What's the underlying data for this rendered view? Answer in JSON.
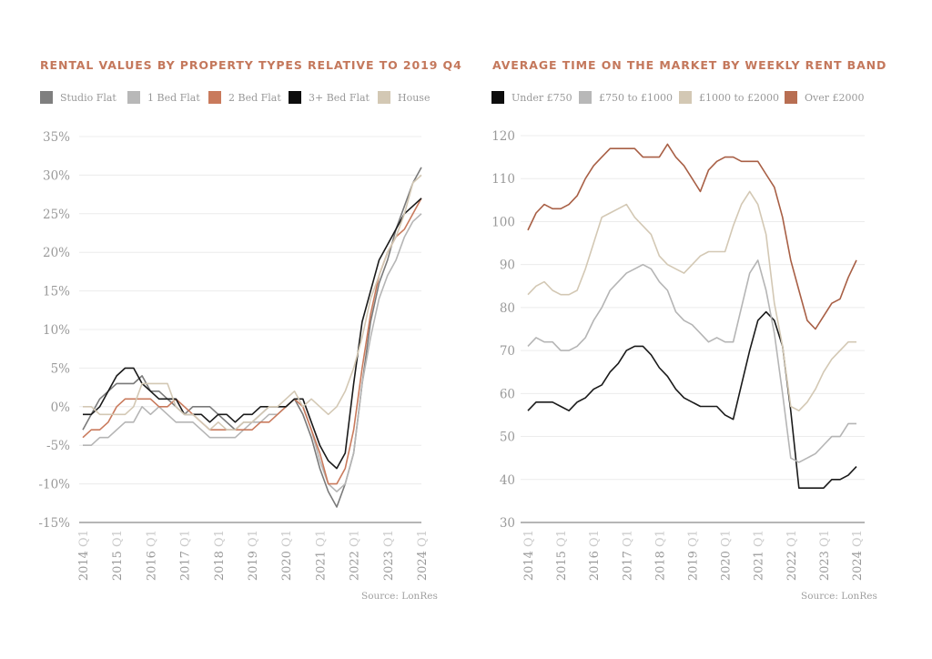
{
  "chart_data": [
    {
      "type": "line",
      "title": "RENTAL VALUES BY PROPERTY TYPES RELATIVE TO 2019 Q4",
      "xlabel": "",
      "ylabel": "",
      "ylim": [
        -15,
        35
      ],
      "yticks": [
        35,
        30,
        25,
        20,
        15,
        10,
        5,
        0,
        -5,
        -10,
        -15
      ],
      "ytick_labels": [
        "35%",
        "30%",
        "25%",
        "20%",
        "15%",
        "10%",
        "5%",
        "0%",
        "-5%",
        "-10%",
        "-15%"
      ],
      "xtick_labels": [
        "2014 Q1",
        "2015 Q1",
        "2016 Q1",
        "2017 Q1",
        "2018 Q1",
        "2019 Q1",
        "2020 Q1",
        "2021 Q1",
        "2022 Q1",
        "2023 Q1",
        "2024 Q1"
      ],
      "x_start": "2014 Q1",
      "x_end": "2024 Q1",
      "x_step": "quarter",
      "grid": true,
      "legend_position": "top",
      "source": "Source: LonRes",
      "series": [
        {
          "name": "Studio Flat",
          "color": "#7a7a7a",
          "values": [
            -3,
            -1,
            1,
            2,
            3,
            3,
            3,
            4,
            2,
            2,
            1,
            0,
            -1,
            0,
            0,
            0,
            -1,
            -2,
            -3,
            -2,
            -2,
            -1,
            0,
            0,
            0,
            1,
            -1,
            -4,
            -8,
            -11,
            -13,
            -10,
            -6,
            3,
            11,
            16,
            19,
            23,
            26,
            29,
            31
          ]
        },
        {
          "name": "1 Bed Flat",
          "color": "#b5b5b5",
          "values": [
            -5,
            -5,
            -4,
            -4,
            -3,
            -2,
            -2,
            0,
            -1,
            0,
            -1,
            -2,
            -2,
            -2,
            -3,
            -4,
            -4,
            -4,
            -4,
            -3,
            -2,
            -2,
            -1,
            -1,
            0,
            1,
            0,
            -3,
            -7,
            -10,
            -11,
            -10,
            -6,
            3,
            9,
            14,
            17,
            19,
            22,
            24,
            25
          ]
        },
        {
          "name": "2 Bed Flat",
          "color": "#c97a5c",
          "values": [
            -4,
            -3,
            -3,
            -2,
            0,
            1,
            1,
            1,
            1,
            0,
            0,
            1,
            0,
            -1,
            -2,
            -3,
            -3,
            -3,
            -3,
            -3,
            -3,
            -2,
            -2,
            -1,
            0,
            1,
            0,
            -3,
            -6,
            -10,
            -10,
            -8,
            -3,
            5,
            12,
            17,
            20,
            22,
            23,
            25,
            27
          ]
        },
        {
          "name": "3+ Bed Flat",
          "color": "#1a1a1a",
          "values": [
            -1,
            -1,
            0,
            2,
            4,
            5,
            5,
            3,
            2,
            1,
            1,
            1,
            -1,
            -1,
            -1,
            -2,
            -1,
            -1,
            -2,
            -1,
            -1,
            0,
            0,
            0,
            0,
            1,
            1,
            -2,
            -5,
            -7,
            -8,
            -6,
            3,
            11,
            15,
            19,
            21,
            23,
            25,
            26,
            27
          ]
        },
        {
          "name": "House",
          "color": "#d3c8b4",
          "values": [
            0,
            0,
            -1,
            -1,
            -1,
            -1,
            0,
            3,
            3,
            3,
            3,
            0,
            -1,
            -1,
            -2,
            -3,
            -2,
            -3,
            -3,
            -2,
            -2,
            -1,
            0,
            0,
            1,
            2,
            0,
            1,
            0,
            -1,
            0,
            2,
            5,
            9,
            14,
            17,
            20,
            22,
            25,
            29,
            30
          ]
        }
      ]
    },
    {
      "type": "line",
      "title": "AVERAGE TIME ON THE MARKET BY WEEKLY RENT BAND",
      "xlabel": "",
      "ylabel": "",
      "ylim": [
        30,
        120
      ],
      "yticks": [
        120,
        110,
        100,
        90,
        80,
        70,
        60,
        50,
        40,
        30
      ],
      "ytick_labels": [
        "120",
        "110",
        "100",
        "90",
        "80",
        "70",
        "60",
        "50",
        "40",
        "30"
      ],
      "xtick_labels": [
        "2014 Q1",
        "2015 Q1",
        "2016 Q1",
        "2017 Q1",
        "2018 Q1",
        "2019 Q1",
        "2020 Q1",
        "2021 Q1",
        "2022 Q1",
        "2023 Q1",
        "2024 Q1"
      ],
      "x_start": "2014 Q1",
      "x_end": "2024 Q1",
      "x_step": "quarter",
      "grid": true,
      "legend_position": "top",
      "source": "Source: LonRes",
      "series": [
        {
          "name": "Under £750",
          "color": "#1a1a1a",
          "values": [
            56,
            58,
            58,
            58,
            57,
            56,
            58,
            59,
            61,
            62,
            65,
            67,
            70,
            71,
            71,
            69,
            66,
            64,
            61,
            59,
            58,
            57,
            57,
            57,
            55,
            54,
            62,
            70,
            77,
            79,
            77,
            71,
            56,
            38,
            38,
            38,
            38,
            40,
            40,
            41,
            43
          ]
        },
        {
          "name": "£750 to £1000",
          "color": "#b5b5b5",
          "values": [
            71,
            73,
            72,
            72,
            70,
            70,
            71,
            73,
            77,
            80,
            84,
            86,
            88,
            89,
            90,
            89,
            86,
            84,
            79,
            77,
            76,
            74,
            72,
            73,
            72,
            72,
            80,
            88,
            91,
            84,
            74,
            60,
            45,
            44,
            45,
            46,
            48,
            50,
            50,
            53,
            53
          ]
        },
        {
          "name": "£1000 to £2000",
          "color": "#d3c8b4",
          "values": [
            83,
            85,
            86,
            84,
            83,
            83,
            84,
            89,
            95,
            101,
            102,
            103,
            104,
            101,
            99,
            97,
            92,
            90,
            89,
            88,
            90,
            92,
            93,
            93,
            93,
            99,
            104,
            107,
            104,
            97,
            81,
            71,
            57,
            56,
            58,
            61,
            65,
            68,
            70,
            72,
            72
          ]
        },
        {
          "name": "Over £2000",
          "color": "#a85f45",
          "values": [
            98,
            102,
            104,
            103,
            103,
            104,
            106,
            110,
            113,
            115,
            117,
            117,
            117,
            117,
            115,
            115,
            115,
            118,
            115,
            113,
            110,
            107,
            112,
            114,
            115,
            115,
            114,
            114,
            114,
            111,
            108,
            101,
            91,
            84,
            77,
            75,
            78,
            81,
            82,
            87,
            91
          ]
        }
      ]
    }
  ],
  "legends": {
    "left": [
      {
        "label": "Studio Flat",
        "color": "#7f7f7f"
      },
      {
        "label": "1 Bed Flat",
        "color": "#b8b8b8"
      },
      {
        "label": "2 Bed Flat",
        "color": "#c97a5c"
      },
      {
        "label": "3+ Bed Flat",
        "color": "#0d0d0d"
      },
      {
        "label": "House",
        "color": "#d3c8b4"
      }
    ],
    "right": [
      {
        "label": "Under £750",
        "color": "#0d0d0d"
      },
      {
        "label": "£750 to £1000",
        "color": "#b8b8b8"
      },
      {
        "label": "£1000 to £2000",
        "color": "#d3c8b4"
      },
      {
        "label": "Over £2000",
        "color": "#b86e52"
      }
    ]
  },
  "colors": {
    "title": "#c4785c",
    "axis_text": "#9a9a9a",
    "grid": "#ececec",
    "baseline": "#9e9e9e"
  }
}
